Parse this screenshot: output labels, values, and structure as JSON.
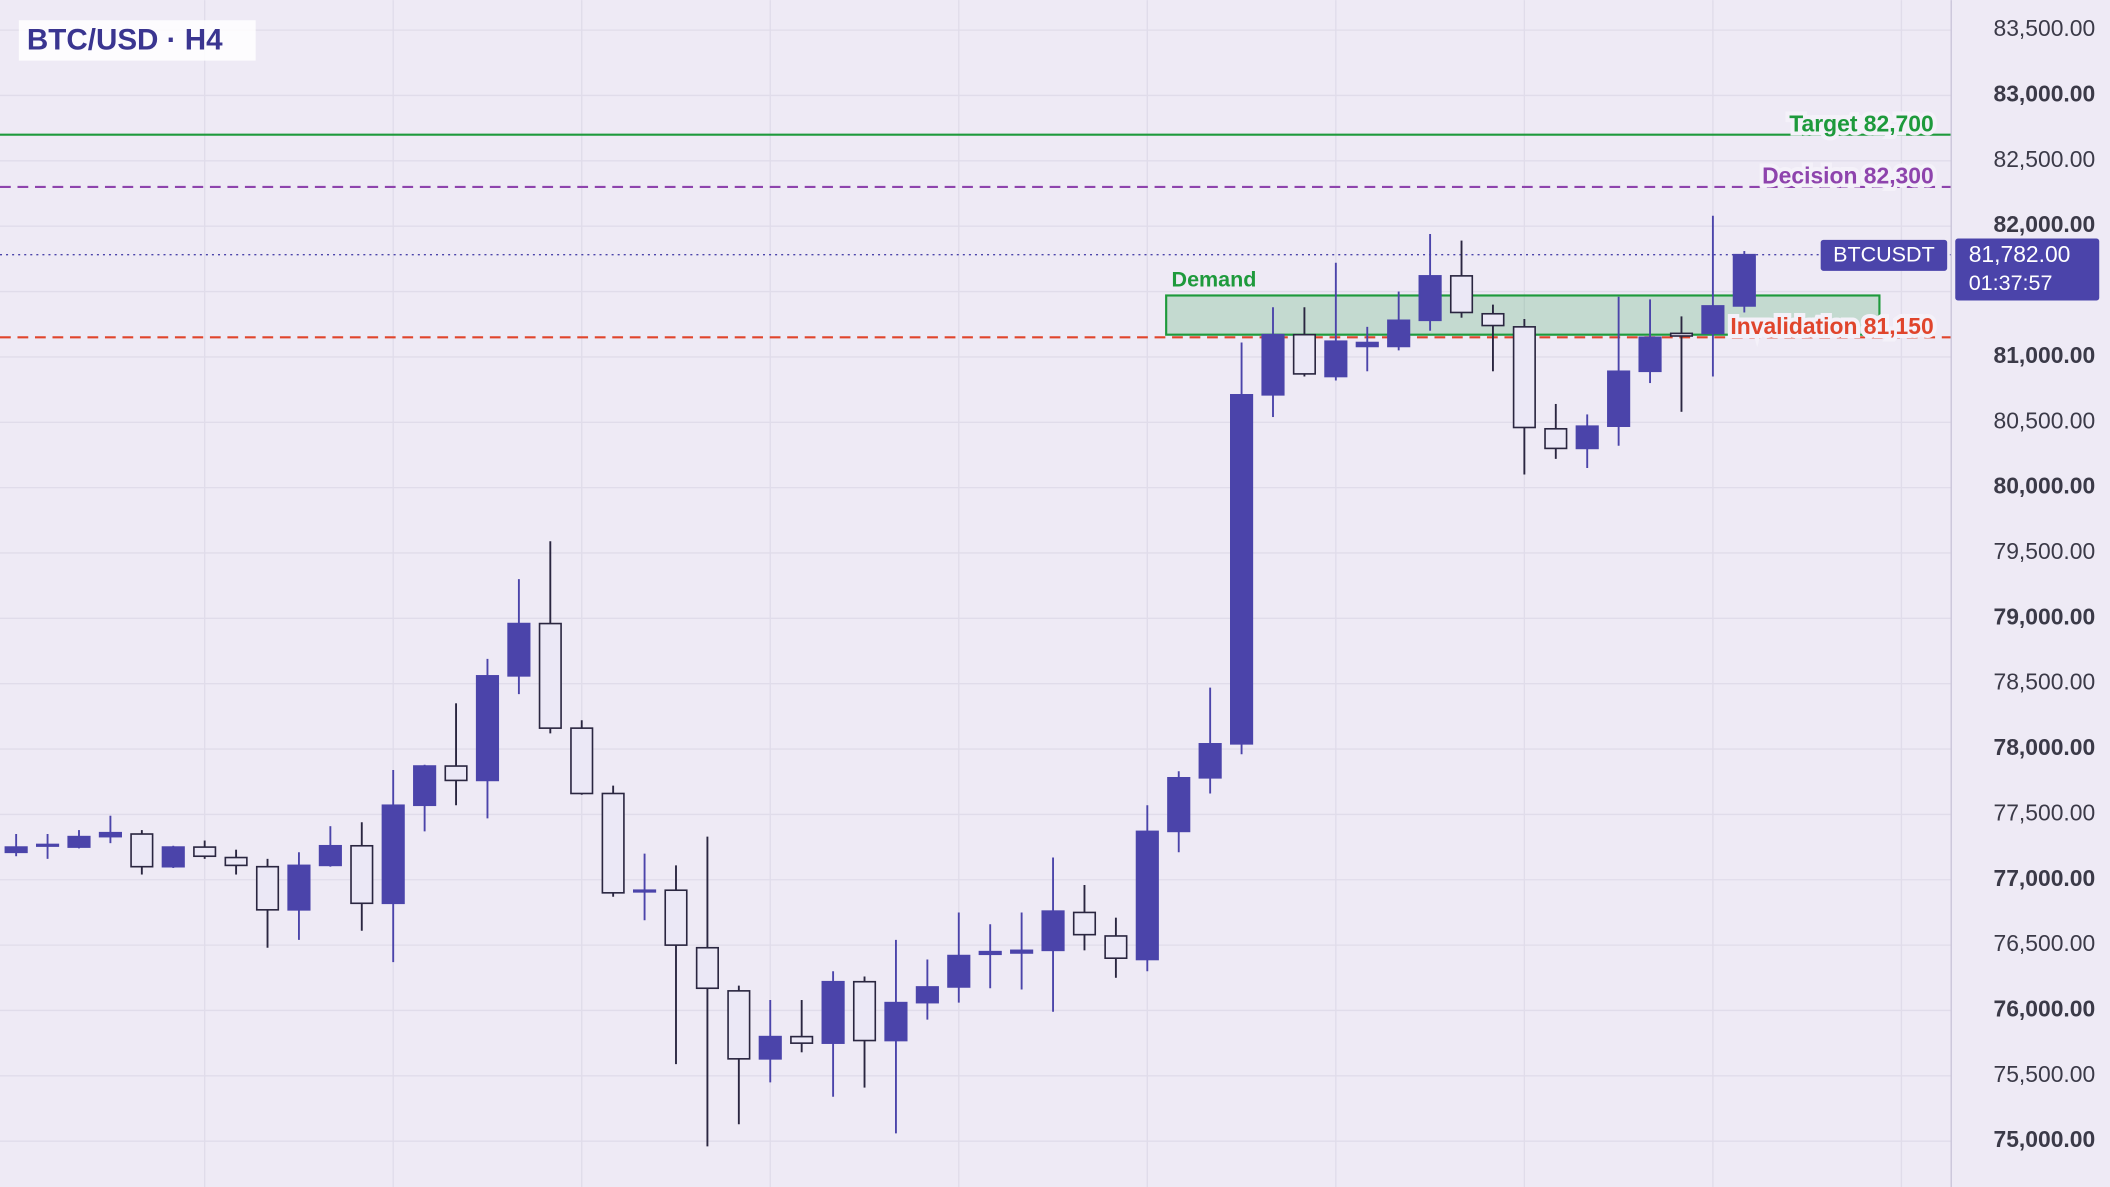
{
  "chart_data": {
    "type": "candlestick",
    "title": "BTC/USD · H4",
    "ylim": [
      74650,
      83730
    ],
    "yticks": [
      {
        "value": 75000,
        "label": "75,000.00"
      },
      {
        "value": 75500,
        "label": "75,500.00"
      },
      {
        "value": 76000,
        "label": "76,000.00"
      },
      {
        "value": 76500,
        "label": "76,500.00"
      },
      {
        "value": 77000,
        "label": "77,000.00"
      },
      {
        "value": 77500,
        "label": "77,500.00"
      },
      {
        "value": 78000,
        "label": "78,000.00"
      },
      {
        "value": 78500,
        "label": "78,500.00"
      },
      {
        "value": 79000,
        "label": "79,000.00"
      },
      {
        "value": 79500,
        "label": "79,500.00"
      },
      {
        "value": 80000,
        "label": "80,000.00"
      },
      {
        "value": 80500,
        "label": "80,500.00"
      },
      {
        "value": 81000,
        "label": "81,000.00"
      },
      {
        "value": 81500,
        "label": "81,500.00"
      },
      {
        "value": 82000,
        "label": "82,000.00"
      },
      {
        "value": 82500,
        "label": "82,500.00"
      },
      {
        "value": 83000,
        "label": "83,000.00"
      },
      {
        "value": 83500,
        "label": "83,500.00"
      }
    ],
    "grid": true,
    "up_color": "#4b44aa",
    "down_color": "#ebe8f6",
    "candles": {
      "open": [
        77210,
        77260,
        77250,
        77330,
        77350,
        77100,
        77250,
        77170,
        77100,
        76770,
        77110,
        77260,
        76820,
        77570,
        77870,
        77760,
        78560,
        78960,
        78160,
        77660,
        76910,
        76920,
        76480,
        76150,
        75630,
        75800,
        75750,
        76220,
        75770,
        76060,
        76180,
        76430,
        76440,
        76460,
        76750,
        76570,
        76390,
        77370,
        77780,
        78040,
        80710,
        81170,
        80850,
        81080,
        81080,
        81280,
        81620,
        81330,
        81230,
        80450,
        80300,
        80470,
        80890,
        81180,
        81180,
        81390
      ],
      "high": [
        77350,
        77350,
        77380,
        77490,
        77380,
        77260,
        77300,
        77230,
        77160,
        77210,
        77410,
        77440,
        77840,
        77880,
        78350,
        78690,
        79300,
        79590,
        78220,
        77720,
        77200,
        77110,
        77330,
        76190,
        76080,
        76080,
        76300,
        76260,
        76540,
        76390,
        76750,
        76660,
        76750,
        77170,
        76960,
        76710,
        77570,
        77830,
        78470,
        81110,
        81380,
        81380,
        81720,
        81230,
        81500,
        81940,
        81890,
        81400,
        81290,
        80640,
        80560,
        81460,
        81440,
        81310,
        82080,
        81810
      ],
      "low": [
        77180,
        77160,
        77240,
        77280,
        77040,
        77090,
        77160,
        77040,
        76480,
        76540,
        77100,
        76610,
        76370,
        77370,
        77570,
        77470,
        78420,
        78120,
        77650,
        76870,
        76690,
        75590,
        74960,
        75130,
        75450,
        75680,
        75340,
        75410,
        75060,
        75930,
        76060,
        76170,
        76160,
        75990,
        76460,
        76250,
        76300,
        77210,
        77660,
        77960,
        80540,
        80850,
        80820,
        80890,
        81050,
        81200,
        81300,
        80890,
        80100,
        80220,
        80150,
        80320,
        80800,
        80580,
        80850,
        81340
      ],
      "close": [
        77250,
        77270,
        77330,
        77360,
        77100,
        77250,
        77180,
        77110,
        76770,
        77110,
        77260,
        76820,
        77570,
        77870,
        77760,
        78560,
        78960,
        78160,
        77660,
        76900,
        76920,
        76500,
        76170,
        75630,
        75800,
        75750,
        76220,
        75770,
        76060,
        76180,
        76420,
        76450,
        76460,
        76760,
        76580,
        76400,
        77370,
        77780,
        78040,
        80710,
        81170,
        80870,
        81120,
        81110,
        81280,
        81620,
        81340,
        81240,
        80460,
        80300,
        80470,
        80890,
        81150,
        81160,
        81390,
        81782
      ]
    },
    "levels": [
      {
        "label": "Target 82,700",
        "value": 82700,
        "color": "#1e9a3c",
        "style": "solid"
      },
      {
        "label": "Decision 82,300",
        "value": 82300,
        "color": "#8e44ad",
        "style": "dashed"
      },
      {
        "label": "Invalidation 81,150",
        "value": 81150,
        "color": "#e0452c",
        "style": "dashed"
      }
    ],
    "zone": {
      "label": "Demand",
      "low": 81170,
      "high": 81470,
      "color": "#1e9a3c"
    },
    "current": {
      "symbol": "BTCUSDT",
      "value": 81782,
      "label": "81,782.00",
      "countdown": "01:37:57"
    }
  }
}
